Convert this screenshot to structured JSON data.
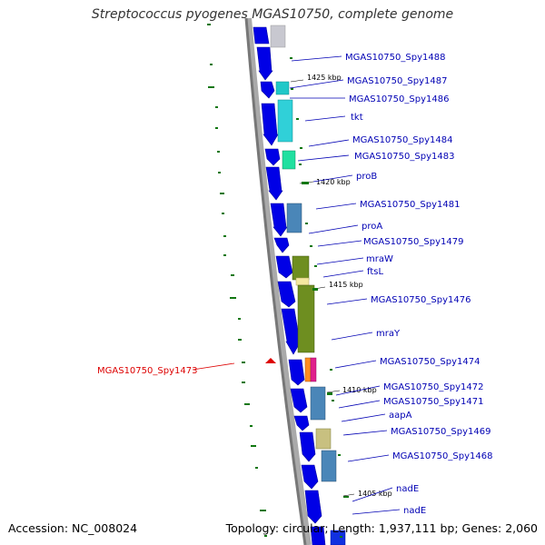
{
  "title": "Streptococcus pyogenes MGAS10750, complete genome",
  "footer": {
    "accession": "Accession: NC_008024",
    "summary": "Topology: circular; Length: 1,937,111 bp; Genes: 2,060"
  },
  "colors": {
    "cds_arrow": "#0000e6",
    "label_forward": "#0000b4",
    "label_highlight": "#dd0000",
    "tick": "#117711",
    "backbone": "#888888"
  },
  "kbp_marks": [
    "1425 kbp",
    "1420 kbp",
    "1415 kbp",
    "1410 kbp",
    "1405 kbp"
  ],
  "genes": [
    {
      "label": "MGAS10750_Spy1488"
    },
    {
      "label": "MGAS10750_Spy1487"
    },
    {
      "label": "MGAS10750_Spy1486"
    },
    {
      "label": "tkt"
    },
    {
      "label": "MGAS10750_Spy1484"
    },
    {
      "label": "MGAS10750_Spy1483"
    },
    {
      "label": "proB"
    },
    {
      "label": "MGAS10750_Spy1481"
    },
    {
      "label": "proA"
    },
    {
      "label": "MGAS10750_Spy1479"
    },
    {
      "label": "mraW"
    },
    {
      "label": "ftsL"
    },
    {
      "label": "MGAS10750_Spy1476"
    },
    {
      "label": "mraY"
    },
    {
      "label": "MGAS10750_Spy1474"
    },
    {
      "label": "MGAS10750_Spy1472"
    },
    {
      "label": "MGAS10750_Spy1471"
    },
    {
      "label": "aapA"
    },
    {
      "label": "MGAS10750_Spy1469"
    },
    {
      "label": "MGAS10750_Spy1468"
    },
    {
      "label": "nadE"
    },
    {
      "label": "nadE"
    }
  ],
  "highlight_gene": {
    "label": "MGAS10750_Spy1473"
  }
}
